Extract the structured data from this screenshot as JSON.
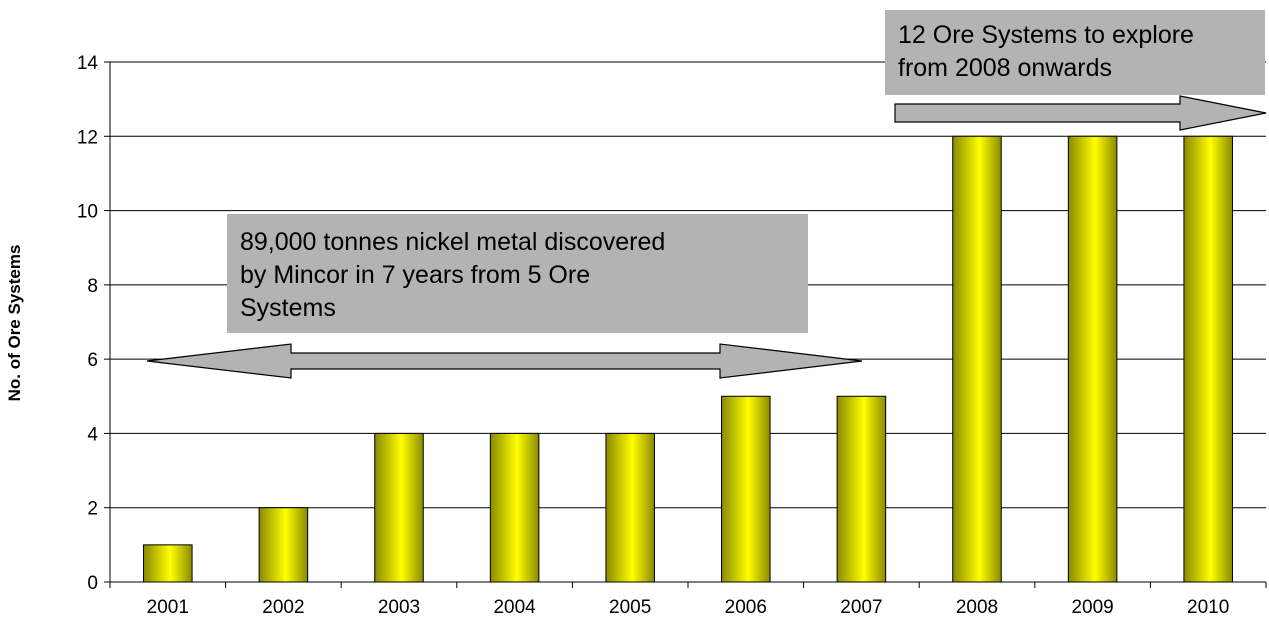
{
  "chart_data": {
    "type": "bar",
    "title": "",
    "xlabel": "",
    "ylabel": "No. of Ore Systems",
    "categories": [
      "2001",
      "2002",
      "2003",
      "2004",
      "2005",
      "2006",
      "2007",
      "2008",
      "2009",
      "2010"
    ],
    "values": [
      1,
      2,
      4,
      4,
      4,
      5,
      5,
      12,
      12,
      12
    ],
    "ylim": [
      0,
      14
    ],
    "yticks": [
      "0",
      "2",
      "4",
      "6",
      "8",
      "10",
      "12",
      "14"
    ],
    "grid": true,
    "legend": "none",
    "bar_color": "#ffff00",
    "bar_shade_color": "#8a8a00",
    "callouts": [
      {
        "lines": [
          "89,000 tonnes nickel metal discovered",
          "by Mincor in 7 years from 5 Ore",
          "Systems"
        ],
        "box_color": "#b3b3b3"
      },
      {
        "lines": [
          "12 Ore Systems to explore",
          "from 2008 onwards"
        ],
        "box_color": "#b3b3b3"
      }
    ]
  }
}
